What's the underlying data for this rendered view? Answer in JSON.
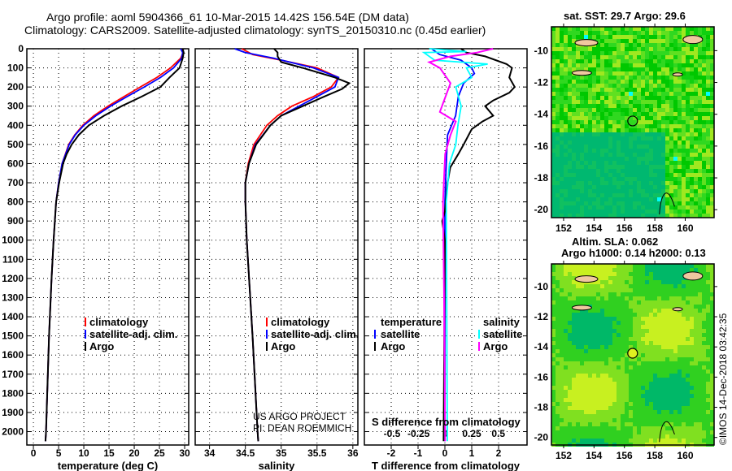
{
  "title": {
    "line1": "Argo profile: aoml 5904366_61 10-Mar-2015 14.42S 156.54E (DM data)",
    "line2": "Climatology: CARS2009. Satellite-adjusted climatology: synTS_20150310.nc (0.45d earlier)"
  },
  "colors": {
    "climatology": "#ff0000",
    "satellite": "#0000ff",
    "argo": "#000000",
    "sal_satellite": "#00ffff",
    "sal_argo": "#ff00ff"
  },
  "credits": {
    "project": "US ARGO PROJECT",
    "pi": "PI: DEAN ROEMMICH",
    "stamp": "©IMOS 14-Dec-2018 03:42:35"
  },
  "chart_data": [
    {
      "type": "line",
      "title": "",
      "xlabel": "temperature (deg C)",
      "ylabel": "",
      "xlim": [
        -1.3,
        30.8
      ],
      "ylim": [
        2070,
        0
      ],
      "xticks": [
        0,
        5,
        10,
        15,
        20,
        25,
        30
      ],
      "yticks": [
        0,
        100,
        200,
        300,
        400,
        500,
        600,
        700,
        800,
        900,
        1000,
        1100,
        1200,
        1300,
        1400,
        1500,
        1600,
        1700,
        1800,
        1900,
        2000
      ],
      "legend": [
        "climatology",
        "satellite-adj. clim.",
        "Argo"
      ],
      "legend_placement": "center",
      "series": [
        {
          "name": "climatology",
          "color": "#ff0000",
          "points": [
            [
              0,
              29.6
            ],
            [
              20,
              29.7
            ],
            [
              50,
              29.2
            ],
            [
              100,
              27.2
            ],
            [
              150,
              24.5
            ],
            [
              200,
              21.2
            ],
            [
              250,
              18.0
            ],
            [
              300,
              14.8
            ],
            [
              350,
              12.0
            ],
            [
              400,
              9.8
            ],
            [
              450,
              8.2
            ],
            [
              500,
              7.0
            ],
            [
              600,
              5.7
            ],
            [
              700,
              5.0
            ],
            [
              800,
              4.5
            ],
            [
              1000,
              4.0
            ],
            [
              1200,
              3.6
            ],
            [
              1500,
              3.1
            ],
            [
              2000,
              2.5
            ],
            [
              2050,
              2.4
            ]
          ]
        },
        {
          "name": "satellite-adj. clim.",
          "color": "#0000ff",
          "points": [
            [
              0,
              29.2
            ],
            [
              20,
              29.6
            ],
            [
              50,
              29.4
            ],
            [
              100,
              27.8
            ],
            [
              150,
              25.2
            ],
            [
              200,
              22.0
            ],
            [
              250,
              18.6
            ],
            [
              300,
              15.3
            ],
            [
              350,
              12.4
            ],
            [
              400,
              10.0
            ],
            [
              450,
              8.3
            ],
            [
              500,
              7.1
            ],
            [
              600,
              5.7
            ],
            [
              700,
              5.0
            ],
            [
              800,
              4.5
            ],
            [
              1000,
              4.0
            ],
            [
              1200,
              3.6
            ],
            [
              1500,
              3.1
            ],
            [
              2000,
              2.5
            ],
            [
              2050,
              2.4
            ]
          ]
        },
        {
          "name": "Argo",
          "color": "#000000",
          "points": [
            [
              0,
              29.6
            ],
            [
              20,
              29.8
            ],
            [
              50,
              29.6
            ],
            [
              100,
              29.0
            ],
            [
              150,
              27.0
            ],
            [
              200,
              25.2
            ],
            [
              250,
              21.5
            ],
            [
              300,
              17.5
            ],
            [
              350,
              14.0
            ],
            [
              400,
              11.0
            ],
            [
              450,
              9.0
            ],
            [
              500,
              7.6
            ],
            [
              550,
              6.6
            ],
            [
              600,
              5.9
            ],
            [
              700,
              5.1
            ],
            [
              800,
              4.5
            ],
            [
              1000,
              4.0
            ],
            [
              1200,
              3.6
            ],
            [
              1500,
              3.1
            ],
            [
              2000,
              2.5
            ],
            [
              2050,
              2.4
            ]
          ]
        }
      ]
    },
    {
      "type": "line",
      "title": "",
      "xlabel": "salinity",
      "ylabel": "",
      "xlim": [
        33.8,
        36.07
      ],
      "ylim": [
        2070,
        0
      ],
      "xticks": [
        34,
        34.5,
        35,
        35.5,
        36
      ],
      "legend": [
        "climatology",
        "satellite-adj. clim.",
        "Argo"
      ],
      "legend_placement": "center",
      "series": [
        {
          "name": "climatology",
          "color": "#ff0000",
          "points": [
            [
              0,
              34.45
            ],
            [
              30,
              34.6
            ],
            [
              60,
              35.0
            ],
            [
              100,
              35.5
            ],
            [
              150,
              35.8
            ],
            [
              200,
              35.7
            ],
            [
              250,
              35.45
            ],
            [
              300,
              35.15
            ],
            [
              350,
              34.95
            ],
            [
              400,
              34.8
            ],
            [
              500,
              34.62
            ],
            [
              600,
              34.54
            ],
            [
              700,
              34.5
            ],
            [
              800,
              34.5
            ],
            [
              1000,
              34.52
            ],
            [
              1500,
              34.6
            ],
            [
              2000,
              34.67
            ],
            [
              2050,
              34.68
            ]
          ]
        },
        {
          "name": "satellite-adj. clim.",
          "color": "#0000ff",
          "points": [
            [
              0,
              34.35
            ],
            [
              20,
              34.5
            ],
            [
              50,
              34.9
            ],
            [
              100,
              35.45
            ],
            [
              150,
              35.8
            ],
            [
              200,
              35.75
            ],
            [
              250,
              35.5
            ],
            [
              300,
              35.25
            ],
            [
              350,
              35.0
            ],
            [
              400,
              34.85
            ],
            [
              500,
              34.64
            ],
            [
              600,
              34.55
            ],
            [
              700,
              34.5
            ],
            [
              800,
              34.5
            ],
            [
              1000,
              34.52
            ],
            [
              1500,
              34.6
            ],
            [
              2000,
              34.67
            ],
            [
              2050,
              34.68
            ]
          ]
        },
        {
          "name": "Argo",
          "color": "#000000",
          "points": [
            [
              0,
              34.9
            ],
            [
              20,
              34.95
            ],
            [
              40,
              34.95
            ],
            [
              70,
              35.0
            ],
            [
              100,
              35.3
            ],
            [
              150,
              35.75
            ],
            [
              180,
              35.95
            ],
            [
              210,
              35.85
            ],
            [
              250,
              35.6
            ],
            [
              300,
              35.3
            ],
            [
              350,
              35.0
            ],
            [
              400,
              34.85
            ],
            [
              450,
              34.75
            ],
            [
              500,
              34.65
            ],
            [
              600,
              34.55
            ],
            [
              700,
              34.5
            ],
            [
              800,
              34.5
            ],
            [
              1000,
              34.52
            ],
            [
              1500,
              34.6
            ],
            [
              2000,
              34.67
            ],
            [
              2050,
              34.68
            ]
          ]
        }
      ]
    },
    {
      "type": "line",
      "title": "",
      "xlabel": "T difference from climatology",
      "x2label": "S difference from climatology",
      "xlim": [
        -3.0,
        3.06
      ],
      "x2lim": [
        -0.76,
        0.77
      ],
      "ylim": [
        2070,
        0
      ],
      "xticks": [
        -2,
        -1,
        0,
        1,
        2
      ],
      "x2ticks": [
        -0.5,
        -0.25,
        0,
        0.25,
        0.5
      ],
      "x2ticklabels": [
        "-0.5",
        "-0.25",
        "0",
        "0.25",
        "0.5"
      ],
      "legend_headers": {
        "temperature": "temperature",
        "salinity": "salinity"
      },
      "legend": [
        "satellite",
        "Argo",
        "satellite",
        "Argo"
      ],
      "series": [
        {
          "name": "T satellite",
          "axis": "T",
          "color": "#0000ff",
          "points": [
            [
              0,
              -0.5
            ],
            [
              30,
              -0.2
            ],
            [
              60,
              0.6
            ],
            [
              100,
              1.0
            ],
            [
              130,
              1.1
            ],
            [
              180,
              0.7
            ],
            [
              250,
              0.5
            ],
            [
              350,
              0.4
            ],
            [
              450,
              0.1
            ],
            [
              600,
              0.05
            ],
            [
              800,
              0.0
            ],
            [
              2050,
              0.0
            ]
          ]
        },
        {
          "name": "T Argo",
          "axis": "T",
          "color": "#000000",
          "points": [
            [
              0,
              0.6
            ],
            [
              20,
              0.8
            ],
            [
              40,
              1.5
            ],
            [
              80,
              2.3
            ],
            [
              100,
              2.5
            ],
            [
              150,
              2.4
            ],
            [
              200,
              2.6
            ],
            [
              230,
              2.4
            ],
            [
              270,
              1.8
            ],
            [
              300,
              1.5
            ],
            [
              350,
              1.8
            ],
            [
              380,
              1.4
            ],
            [
              420,
              1.0
            ],
            [
              500,
              0.7
            ],
            [
              550,
              0.5
            ],
            [
              620,
              0.2
            ],
            [
              700,
              0.1
            ],
            [
              850,
              0.0
            ],
            [
              900,
              -0.1
            ],
            [
              1000,
              0.0
            ],
            [
              2050,
              -0.05
            ]
          ]
        },
        {
          "name": "S satellite",
          "axis": "S",
          "color": "#00ffff",
          "points": [
            [
              0,
              -0.15
            ],
            [
              15,
              0.2
            ],
            [
              20,
              -0.2
            ],
            [
              60,
              -0.1
            ],
            [
              80,
              0.4
            ],
            [
              100,
              0.2
            ],
            [
              150,
              0.25
            ],
            [
              200,
              0.1
            ],
            [
              300,
              0.15
            ],
            [
              400,
              0.12
            ],
            [
              500,
              0.1
            ],
            [
              600,
              0.04
            ],
            [
              800,
              0.01
            ],
            [
              2050,
              0.02
            ]
          ]
        },
        {
          "name": "S Argo",
          "axis": "S",
          "color": "#ff00ff",
          "points": [
            [
              0,
              0.45
            ],
            [
              20,
              0.3
            ],
            [
              40,
              0.05
            ],
            [
              70,
              -0.15
            ],
            [
              100,
              -0.05
            ],
            [
              180,
              0.05
            ],
            [
              330,
              -0.05
            ],
            [
              380,
              0.1
            ],
            [
              450,
              0.05
            ],
            [
              550,
              0.0
            ],
            [
              800,
              -0.02
            ],
            [
              1300,
              -0.01
            ],
            [
              2050,
              0.0
            ]
          ]
        }
      ]
    },
    {
      "type": "heatmap",
      "title": "sat. SST: 29.7 Argo: 29.6",
      "xlim": [
        151.2,
        161.9
      ],
      "ylim": [
        -20.5,
        -8.5
      ],
      "xticks": [
        152,
        154,
        156,
        158,
        160
      ],
      "yticks": [
        -10,
        -12,
        -14,
        -16,
        -18,
        -20
      ],
      "marker": [
        156.54,
        -14.42
      ]
    },
    {
      "type": "heatmap",
      "title": "Altim. SLA: 0.062",
      "subtitle": "Argo h1000: 0.14 h2000: 0.13",
      "xlim": [
        151.2,
        161.9
      ],
      "ylim": [
        -20.5,
        -8.5
      ],
      "xticks": [
        152,
        154,
        156,
        158,
        160
      ],
      "yticks": [
        -10,
        -12,
        -14,
        -16,
        -18,
        -20
      ],
      "marker": [
        156.54,
        -14.42
      ]
    }
  ]
}
